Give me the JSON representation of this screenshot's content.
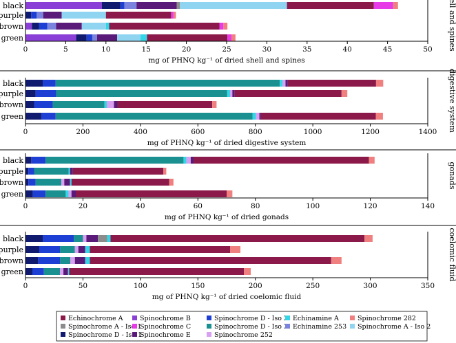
{
  "colors": {
    "Echinochrome A": "#8b1a4a",
    "Spinochrome B": "#8a3fd6",
    "Spinochrome D - Iso 2": "#1e3fd4",
    "Echinamine A": "#33d6e6",
    "Spinochrome 282": "#f08080",
    "Spinochrome A - Iso 1": "#8c8c8c",
    "Spinochrome C": "#e83be8",
    "Spinochrome D - Iso 3": "#1a9090",
    "Echinamine 253": "#7a84de",
    "Spinochrome A - Iso 2": "#8fd4f0",
    "Spinochrome D - Iso 1": "#101a6e",
    "Spinochrome E": "#5a1a7a",
    "Spinochrome 252": "#d8a0f0"
  },
  "legend": {
    "position": "bottom",
    "entries": [
      "Echinochrome A",
      "Spinochrome B",
      "Spinochrome D - Iso 2",
      "Echinamine A",
      "Spinochrome 282",
      "Spinochrome A - Iso 1",
      "Spinochrome C",
      "Spinochrome D - Iso 3",
      "Echinamine 253",
      "Spinochrome A - Iso 2",
      "Spinochrome D - Iso 1",
      "Spinochrome E",
      "Spinochrome 252"
    ]
  },
  "chart_data": [
    {
      "type": "bar",
      "orientation": "horizontal-stacked",
      "panel_label": "shell and spines",
      "xlabel": "mg of PHNQ kg⁻¹ of dried shell and spines",
      "xlim": [
        0,
        50
      ],
      "xticks": [
        0,
        5,
        10,
        15,
        20,
        25,
        30,
        35,
        40,
        45,
        50
      ],
      "categories": [
        "black",
        "purple",
        "brown",
        "green"
      ],
      "segments": {
        "black": [
          {
            "name": "Spinochrome B",
            "value": 9.5
          },
          {
            "name": "Spinochrome D - Iso 1",
            "value": 2.3
          },
          {
            "name": "Spinochrome D - Iso 2",
            "value": 0.5
          },
          {
            "name": "Echinamine 253",
            "value": 1.5
          },
          {
            "name": "Spinochrome E",
            "value": 5.0
          },
          {
            "name": "Spinochrome A - Iso 1",
            "value": 0.4
          },
          {
            "name": "Spinochrome A - Iso 2",
            "value": 13.3
          },
          {
            "name": "Echinochrome A",
            "value": 10.8
          },
          {
            "name": "Spinochrome C",
            "value": 2.4
          },
          {
            "name": "Spinochrome 282",
            "value": 0.6
          }
        ],
        "purple": [
          {
            "name": "Spinochrome D - Iso 1",
            "value": 0.7
          },
          {
            "name": "Spinochrome D - Iso 2",
            "value": 0.7
          },
          {
            "name": "Echinamine 253",
            "value": 0.8
          },
          {
            "name": "Spinochrome E",
            "value": 2.3
          },
          {
            "name": "Spinochrome A - Iso 2",
            "value": 5.5
          },
          {
            "name": "Echinochrome A",
            "value": 8.1
          },
          {
            "name": "Spinochrome C",
            "value": 0.3
          },
          {
            "name": "Spinochrome 282",
            "value": 0.3
          }
        ],
        "brown": [
          {
            "name": "Spinochrome B",
            "value": 0.8
          },
          {
            "name": "Spinochrome D - Iso 1",
            "value": 0.9
          },
          {
            "name": "Spinochrome D - Iso 2",
            "value": 1.0
          },
          {
            "name": "Echinamine 253",
            "value": 1.1
          },
          {
            "name": "Spinochrome E",
            "value": 3.2
          },
          {
            "name": "Spinochrome A - Iso 2",
            "value": 3.0
          },
          {
            "name": "Echinamine A",
            "value": 0.4
          },
          {
            "name": "Echinochrome A",
            "value": 13.7
          },
          {
            "name": "Spinochrome C",
            "value": 0.5
          },
          {
            "name": "Spinochrome 282",
            "value": 0.5
          }
        ],
        "green": [
          {
            "name": "Spinochrome B",
            "value": 6.3
          },
          {
            "name": "Spinochrome D - Iso 1",
            "value": 1.3
          },
          {
            "name": "Spinochrome D - Iso 2",
            "value": 0.7
          },
          {
            "name": "Echinamine 253",
            "value": 0.6
          },
          {
            "name": "Spinochrome E",
            "value": 2.5
          },
          {
            "name": "Spinochrome A - Iso 2",
            "value": 2.9
          },
          {
            "name": "Echinamine A",
            "value": 0.8
          },
          {
            "name": "Echinochrome A",
            "value": 10.0
          },
          {
            "name": "Spinochrome C",
            "value": 0.5
          },
          {
            "name": "Spinochrome 282",
            "value": 0.5
          }
        ]
      }
    },
    {
      "type": "bar",
      "orientation": "horizontal-stacked",
      "panel_label": "digestive system",
      "xlabel": "mg of PHNQ kg⁻¹ of dried digestive system",
      "xlim": [
        0,
        1400
      ],
      "xticks": [
        0,
        200,
        400,
        600,
        800,
        1000,
        1200,
        1400
      ],
      "categories": [
        "black",
        "purple",
        "brown",
        "green"
      ],
      "segments": {
        "black": [
          {
            "name": "Spinochrome D - Iso 1",
            "value": 60
          },
          {
            "name": "Spinochrome D - Iso 2",
            "value": 45
          },
          {
            "name": "Spinochrome D - Iso 3",
            "value": 780
          },
          {
            "name": "Echinamine A",
            "value": 10
          },
          {
            "name": "Spinochrome 252",
            "value": 10
          },
          {
            "name": "Spinochrome E",
            "value": 8
          },
          {
            "name": "Echinochrome A",
            "value": 307
          },
          {
            "name": "Spinochrome 282",
            "value": 25
          }
        ],
        "purple": [
          {
            "name": "Spinochrome D - Iso 1",
            "value": 35
          },
          {
            "name": "Spinochrome D - Iso 2",
            "value": 72
          },
          {
            "name": "Spinochrome D - Iso 3",
            "value": 595
          },
          {
            "name": "Echinamine A",
            "value": 10
          },
          {
            "name": "Spinochrome 252",
            "value": 8
          },
          {
            "name": "Spinochrome E",
            "value": 8
          },
          {
            "name": "Echinochrome A",
            "value": 372
          },
          {
            "name": "Spinochrome 282",
            "value": 20
          }
        ],
        "brown": [
          {
            "name": "Spinochrome D - Iso 1",
            "value": 30
          },
          {
            "name": "Spinochrome D - Iso 2",
            "value": 65
          },
          {
            "name": "Spinochrome D - Iso 3",
            "value": 180
          },
          {
            "name": "Echinamine A",
            "value": 8
          },
          {
            "name": "Spinochrome 252",
            "value": 25
          },
          {
            "name": "Spinochrome E",
            "value": 12
          },
          {
            "name": "Echinochrome A",
            "value": 330
          },
          {
            "name": "Spinochrome 282",
            "value": 15
          }
        ],
        "green": [
          {
            "name": "Spinochrome D - Iso 1",
            "value": 55
          },
          {
            "name": "Spinochrome D - Iso 2",
            "value": 50
          },
          {
            "name": "Spinochrome D - Iso 3",
            "value": 685
          },
          {
            "name": "Echinamine A",
            "value": 12
          },
          {
            "name": "Spinochrome 252",
            "value": 12
          },
          {
            "name": "Spinochrome E",
            "value": 5
          },
          {
            "name": "Echinochrome A",
            "value": 400
          },
          {
            "name": "Spinochrome 282",
            "value": 25
          }
        ]
      }
    },
    {
      "type": "bar",
      "orientation": "horizontal-stacked",
      "panel_label": "gonads",
      "xlabel": "mg of PHNQ kg⁻¹ of dried gonads",
      "xlim": [
        0,
        140
      ],
      "xticks": [
        0,
        20,
        40,
        60,
        80,
        100,
        120,
        140
      ],
      "categories": [
        "black",
        "purple",
        "brown",
        "green"
      ],
      "segments": {
        "black": [
          {
            "name": "Spinochrome D - Iso 1",
            "value": 2
          },
          {
            "name": "Spinochrome D - Iso 2",
            "value": 5
          },
          {
            "name": "Spinochrome D - Iso 3",
            "value": 48
          },
          {
            "name": "Echinamine A",
            "value": 1
          },
          {
            "name": "Spinochrome 252",
            "value": 1.5
          },
          {
            "name": "Spinochrome E",
            "value": 1
          },
          {
            "name": "Echinochrome A",
            "value": 61
          },
          {
            "name": "Spinochrome 282",
            "value": 2
          }
        ],
        "purple": [
          {
            "name": "Spinochrome D - Iso 1",
            "value": 1
          },
          {
            "name": "Spinochrome D - Iso 2",
            "value": 2
          },
          {
            "name": "Spinochrome D - Iso 3",
            "value": 12
          },
          {
            "name": "Echinamine A",
            "value": 0.5
          },
          {
            "name": "Spinochrome E",
            "value": 1
          },
          {
            "name": "Echinochrome A",
            "value": 31.5
          },
          {
            "name": "Spinochrome 282",
            "value": 1
          }
        ],
        "brown": [
          {
            "name": "Spinochrome D - Iso 1",
            "value": 1
          },
          {
            "name": "Spinochrome D - Iso 2",
            "value": 2.5
          },
          {
            "name": "Spinochrome D - Iso 3",
            "value": 9
          },
          {
            "name": "Spinochrome 252",
            "value": 1
          },
          {
            "name": "Spinochrome E",
            "value": 2
          },
          {
            "name": "Echinamine A",
            "value": 0.5
          },
          {
            "name": "Echinochrome A",
            "value": 34
          },
          {
            "name": "Spinochrome 282",
            "value": 1.5
          }
        ],
        "green": [
          {
            "name": "Spinochrome D - Iso 1",
            "value": 2.5
          },
          {
            "name": "Spinochrome D - Iso 2",
            "value": 4.5
          },
          {
            "name": "Spinochrome D - Iso 3",
            "value": 7
          },
          {
            "name": "Echinamine A",
            "value": 1
          },
          {
            "name": "Spinochrome 252",
            "value": 1
          },
          {
            "name": "Spinochrome E",
            "value": 1.5
          },
          {
            "name": "Echinochrome A",
            "value": 52.5
          },
          {
            "name": "Spinochrome 282",
            "value": 2
          }
        ]
      }
    },
    {
      "type": "bar",
      "orientation": "horizontal-stacked",
      "panel_label": "coelomic fluid",
      "xlabel": "mg of PHNQ kg⁻¹ of dried coelomic fluid",
      "xlim": [
        0,
        350
      ],
      "xticks": [
        0,
        50,
        100,
        150,
        200,
        250,
        300,
        350
      ],
      "categories": [
        "black",
        "purple",
        "brown",
        "green"
      ],
      "segments": {
        "black": [
          {
            "name": "Spinochrome D - Iso 1",
            "value": 15
          },
          {
            "name": "Spinochrome D - Iso 2",
            "value": 27
          },
          {
            "name": "Spinochrome D - Iso 3",
            "value": 8
          },
          {
            "name": "Spinochrome 252",
            "value": 3
          },
          {
            "name": "Spinochrome E",
            "value": 10
          },
          {
            "name": "Spinochrome A - Iso 1",
            "value": 8
          },
          {
            "name": "Echinamine A",
            "value": 3
          },
          {
            "name": "Echinochrome A",
            "value": 221
          },
          {
            "name": "Spinochrome 282",
            "value": 7
          }
        ],
        "purple": [
          {
            "name": "Spinochrome D - Iso 1",
            "value": 12
          },
          {
            "name": "Spinochrome D - Iso 2",
            "value": 18
          },
          {
            "name": "Spinochrome D - Iso 3",
            "value": 13
          },
          {
            "name": "Spinochrome 252",
            "value": 3
          },
          {
            "name": "Spinochrome E",
            "value": 6
          },
          {
            "name": "Echinamine A",
            "value": 4
          },
          {
            "name": "Echinochrome A",
            "value": 122
          },
          {
            "name": "Spinochrome 282",
            "value": 9
          }
        ],
        "brown": [
          {
            "name": "Spinochrome D - Iso 1",
            "value": 11
          },
          {
            "name": "Spinochrome D - Iso 2",
            "value": 19
          },
          {
            "name": "Spinochrome D - Iso 3",
            "value": 9
          },
          {
            "name": "Spinochrome 252",
            "value": 4
          },
          {
            "name": "Spinochrome E",
            "value": 9
          },
          {
            "name": "Echinamine A",
            "value": 4
          },
          {
            "name": "Echinochrome A",
            "value": 210
          },
          {
            "name": "Spinochrome 282",
            "value": 9
          }
        ],
        "green": [
          {
            "name": "Spinochrome D - Iso 1",
            "value": 6
          },
          {
            "name": "Spinochrome D - Iso 2",
            "value": 10
          },
          {
            "name": "Spinochrome D - Iso 3",
            "value": 14
          },
          {
            "name": "Spinochrome 252",
            "value": 3
          },
          {
            "name": "Spinochrome E",
            "value": 4
          },
          {
            "name": "Echinamine A",
            "value": 1
          },
          {
            "name": "Echinochrome A",
            "value": 152
          },
          {
            "name": "Spinochrome 282",
            "value": 6
          }
        ]
      }
    }
  ]
}
